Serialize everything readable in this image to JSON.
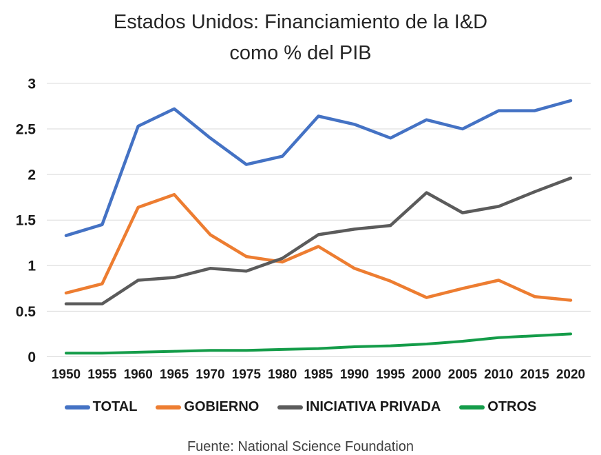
{
  "title": {
    "line1": "Estados Unidos: Financiamiento de la I&D",
    "line2": "como % del PIB"
  },
  "footer": "Fuente: National Science Foundation",
  "chart_data": {
    "type": "line",
    "title": "Estados Unidos: Financiamiento de la I&D como % del PIB",
    "xlabel": "",
    "ylabel": "",
    "x": [
      1950,
      1955,
      1960,
      1965,
      1970,
      1975,
      1980,
      1985,
      1990,
      1995,
      2000,
      2005,
      2010,
      2015,
      2020
    ],
    "x_tick_labels": [
      "1950",
      "1955",
      "1960",
      "1965",
      "1970",
      "1975",
      "1980",
      "1985",
      "1990",
      "1995",
      "2000",
      "2005",
      "2010",
      "2015",
      "2020"
    ],
    "series": [
      {
        "name": "TOTAL",
        "color": "#4472C4",
        "values": [
          1.33,
          1.45,
          2.53,
          2.72,
          2.4,
          2.11,
          2.2,
          2.64,
          2.55,
          2.4,
          2.6,
          2.5,
          2.7,
          2.7,
          2.81
        ]
      },
      {
        "name": "GOBIERNO",
        "color": "#ED7D31",
        "values": [
          0.7,
          0.8,
          1.64,
          1.78,
          1.34,
          1.1,
          1.04,
          1.21,
          0.97,
          0.83,
          0.65,
          0.75,
          0.84,
          0.66,
          0.62
        ]
      },
      {
        "name": "INICIATIVA PRIVADA",
        "color": "#5B5B5B",
        "values": [
          0.58,
          0.58,
          0.84,
          0.87,
          0.97,
          0.94,
          1.08,
          1.34,
          1.4,
          1.44,
          1.8,
          1.58,
          1.65,
          1.81,
          1.96
        ]
      },
      {
        "name": "OTROS",
        "color": "#149C49",
        "values": [
          0.04,
          0.04,
          0.05,
          0.06,
          0.07,
          0.07,
          0.08,
          0.09,
          0.11,
          0.12,
          0.14,
          0.17,
          0.21,
          0.23,
          0.25
        ]
      }
    ],
    "y_ticks": [
      0,
      0.5,
      1,
      1.5,
      2,
      2.5,
      3
    ],
    "y_tick_labels": [
      "0",
      "0.5",
      "1",
      "1.5",
      "2",
      "2.5",
      "3"
    ],
    "ylim": [
      0,
      3
    ],
    "grid": true,
    "gridline_color": "#D9D9D9",
    "axis_text_color": "#1a1a1a",
    "legend_position": "bottom"
  }
}
